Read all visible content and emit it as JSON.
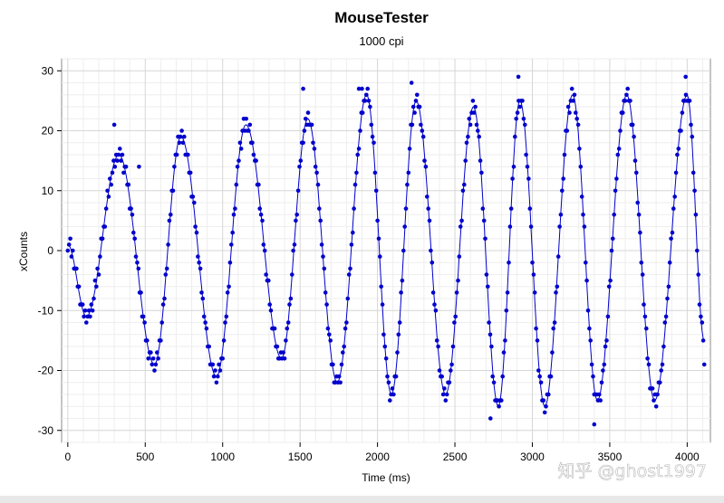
{
  "chart_data": {
    "type": "scatter",
    "title": "MouseTester",
    "subtitle": "1000 cpi",
    "xlabel": "Time (ms)",
    "ylabel": "xCounts",
    "xlim": [
      -40,
      4150
    ],
    "ylim": [
      -32,
      32
    ],
    "xticks": [
      0,
      500,
      1000,
      1500,
      2000,
      2500,
      3000,
      3500,
      4000
    ],
    "yticks": [
      -30,
      -20,
      -10,
      0,
      10,
      20,
      30
    ],
    "xtick_labels": [
      "0",
      "500",
      "1000",
      "1500",
      "2000",
      "2500",
      "3000",
      "3500",
      "4000"
    ],
    "ytick_labels": [
      "-30",
      "-20",
      "-10",
      "0",
      "10",
      "20",
      "30"
    ],
    "grid": true,
    "series": [
      {
        "name": "xCounts",
        "color": "#0000cc",
        "style": "points+line",
        "sample_interval_ms": 8,
        "wave_extrema": [
          [
            0,
            1
          ],
          [
            120,
            -11
          ],
          [
            330,
            16
          ],
          [
            560,
            -19
          ],
          [
            730,
            19
          ],
          [
            960,
            -21
          ],
          [
            1150,
            21
          ],
          [
            1380,
            -18
          ],
          [
            1550,
            22
          ],
          [
            1740,
            -22
          ],
          [
            1930,
            26
          ],
          [
            2090,
            -24
          ],
          [
            2250,
            25
          ],
          [
            2440,
            -24
          ],
          [
            2620,
            24
          ],
          [
            2780,
            -26
          ],
          [
            2920,
            25
          ],
          [
            3080,
            -26
          ],
          [
            3260,
            26
          ],
          [
            3420,
            -25
          ],
          [
            3610,
            26
          ],
          [
            3790,
            -25
          ],
          [
            4000,
            26
          ],
          [
            4110,
            -15
          ]
        ],
        "outliers": [
          [
            300,
            21
          ],
          [
            460,
            14
          ],
          [
            1520,
            27
          ],
          [
            1880,
            27
          ],
          [
            1900,
            27
          ],
          [
            2220,
            28
          ],
          [
            2730,
            -28
          ],
          [
            2910,
            29
          ],
          [
            3400,
            -29
          ],
          [
            3990,
            29
          ],
          [
            4110,
            -19
          ]
        ]
      }
    ]
  },
  "watermark": "知乎 @ghost1997"
}
